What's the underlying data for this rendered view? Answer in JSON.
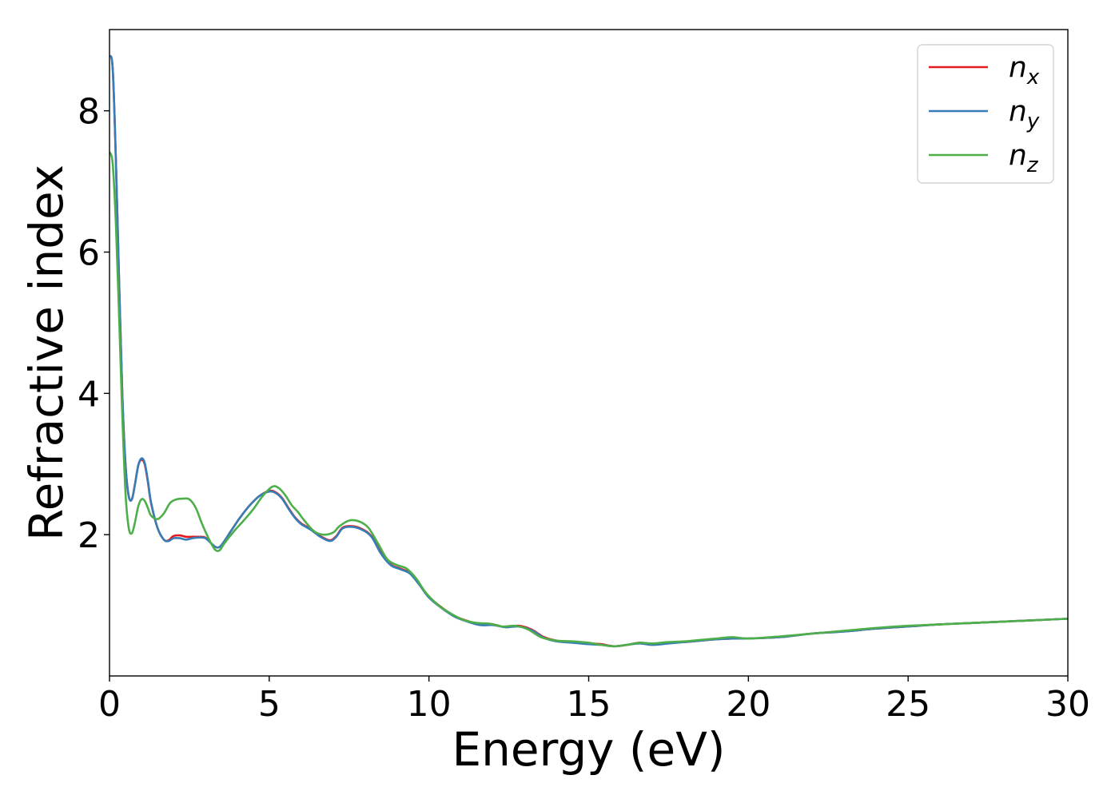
{
  "chart_data": {
    "type": "line",
    "title": "",
    "xlabel": "Energy (eV)",
    "ylabel": "Refractive index",
    "xlim": [
      0,
      30
    ],
    "ylim": [
      0.0,
      9.15
    ],
    "xticks": [
      0,
      5,
      10,
      15,
      20,
      25,
      30
    ],
    "yticks": [
      2,
      4,
      6,
      8
    ],
    "grid": false,
    "legend_position": "top-right",
    "series": [
      {
        "name": "x",
        "legend_base": "n",
        "color": "#e41a1c",
        "points": [
          [
            0,
            8.78
          ],
          [
            0.1,
            8.6
          ],
          [
            0.2,
            7.3
          ],
          [
            0.3,
            5.6
          ],
          [
            0.4,
            4.0
          ],
          [
            0.5,
            3.0
          ],
          [
            0.6,
            2.55
          ],
          [
            0.7,
            2.5
          ],
          [
            0.8,
            2.72
          ],
          [
            0.9,
            2.98
          ],
          [
            1.0,
            3.06
          ],
          [
            1.1,
            3.0
          ],
          [
            1.2,
            2.75
          ],
          [
            1.3,
            2.45
          ],
          [
            1.5,
            2.1
          ],
          [
            1.7,
            1.93
          ],
          [
            1.85,
            1.92
          ],
          [
            2.0,
            1.98
          ],
          [
            2.2,
            1.99
          ],
          [
            2.4,
            1.97
          ],
          [
            2.6,
            1.97
          ],
          [
            2.8,
            1.97
          ],
          [
            3.0,
            1.96
          ],
          [
            3.2,
            1.87
          ],
          [
            3.35,
            1.82
          ],
          [
            3.5,
            1.85
          ],
          [
            3.8,
            2.05
          ],
          [
            4.1,
            2.25
          ],
          [
            4.4,
            2.42
          ],
          [
            4.7,
            2.55
          ],
          [
            5.0,
            2.62
          ],
          [
            5.2,
            2.6
          ],
          [
            5.4,
            2.52
          ],
          [
            5.6,
            2.38
          ],
          [
            5.8,
            2.25
          ],
          [
            6.0,
            2.16
          ],
          [
            6.3,
            2.08
          ],
          [
            6.6,
            1.98
          ],
          [
            6.9,
            1.92
          ],
          [
            7.1,
            1.98
          ],
          [
            7.3,
            2.1
          ],
          [
            7.6,
            2.12
          ],
          [
            7.9,
            2.08
          ],
          [
            8.2,
            1.98
          ],
          [
            8.5,
            1.75
          ],
          [
            8.8,
            1.58
          ],
          [
            9.1,
            1.52
          ],
          [
            9.4,
            1.46
          ],
          [
            9.7,
            1.3
          ],
          [
            10.0,
            1.12
          ],
          [
            10.4,
            0.97
          ],
          [
            10.8,
            0.85
          ],
          [
            11.2,
            0.78
          ],
          [
            11.6,
            0.73
          ],
          [
            12.0,
            0.73
          ],
          [
            12.4,
            0.69
          ],
          [
            12.8,
            0.71
          ],
          [
            13.2,
            0.66
          ],
          [
            13.6,
            0.55
          ],
          [
            14.0,
            0.5
          ],
          [
            14.5,
            0.48
          ],
          [
            15.0,
            0.46
          ],
          [
            15.4,
            0.45
          ],
          [
            15.8,
            0.42
          ],
          [
            16.2,
            0.44
          ],
          [
            16.6,
            0.47
          ],
          [
            17.0,
            0.45
          ],
          [
            17.5,
            0.47
          ],
          [
            18.0,
            0.48
          ],
          [
            18.5,
            0.5
          ],
          [
            19.0,
            0.52
          ],
          [
            19.5,
            0.53
          ],
          [
            20.0,
            0.53
          ],
          [
            21.0,
            0.55
          ],
          [
            22.0,
            0.6
          ],
          [
            23.0,
            0.63
          ],
          [
            24.0,
            0.67
          ],
          [
            25.0,
            0.7
          ],
          [
            26.0,
            0.73
          ],
          [
            27.0,
            0.75
          ],
          [
            28.0,
            0.77
          ],
          [
            29.0,
            0.79
          ],
          [
            30.0,
            0.81
          ]
        ]
      },
      {
        "name": "y",
        "legend_base": "n",
        "color": "#377eb8",
        "points": [
          [
            0,
            8.78
          ],
          [
            0.1,
            8.6
          ],
          [
            0.2,
            7.3
          ],
          [
            0.3,
            5.6
          ],
          [
            0.4,
            4.0
          ],
          [
            0.5,
            3.0
          ],
          [
            0.6,
            2.55
          ],
          [
            0.7,
            2.5
          ],
          [
            0.8,
            2.72
          ],
          [
            0.9,
            2.98
          ],
          [
            1.0,
            3.08
          ],
          [
            1.1,
            3.02
          ],
          [
            1.2,
            2.77
          ],
          [
            1.3,
            2.46
          ],
          [
            1.5,
            2.1
          ],
          [
            1.7,
            1.93
          ],
          [
            1.85,
            1.91
          ],
          [
            2.0,
            1.95
          ],
          [
            2.2,
            1.95
          ],
          [
            2.4,
            1.93
          ],
          [
            2.6,
            1.95
          ],
          [
            2.8,
            1.96
          ],
          [
            3.0,
            1.95
          ],
          [
            3.2,
            1.87
          ],
          [
            3.35,
            1.82
          ],
          [
            3.5,
            1.85
          ],
          [
            3.8,
            2.05
          ],
          [
            4.1,
            2.25
          ],
          [
            4.4,
            2.42
          ],
          [
            4.7,
            2.55
          ],
          [
            5.0,
            2.61
          ],
          [
            5.2,
            2.59
          ],
          [
            5.4,
            2.51
          ],
          [
            5.6,
            2.37
          ],
          [
            5.8,
            2.24
          ],
          [
            6.0,
            2.15
          ],
          [
            6.3,
            2.07
          ],
          [
            6.6,
            1.97
          ],
          [
            6.9,
            1.91
          ],
          [
            7.1,
            1.97
          ],
          [
            7.3,
            2.09
          ],
          [
            7.6,
            2.11
          ],
          [
            7.9,
            2.07
          ],
          [
            8.2,
            1.97
          ],
          [
            8.5,
            1.73
          ],
          [
            8.8,
            1.57
          ],
          [
            9.1,
            1.51
          ],
          [
            9.4,
            1.45
          ],
          [
            9.7,
            1.29
          ],
          [
            10.0,
            1.11
          ],
          [
            10.4,
            0.96
          ],
          [
            10.8,
            0.84
          ],
          [
            11.2,
            0.77
          ],
          [
            11.6,
            0.72
          ],
          [
            12.0,
            0.72
          ],
          [
            12.4,
            0.69
          ],
          [
            12.8,
            0.7
          ],
          [
            13.2,
            0.65
          ],
          [
            13.6,
            0.54
          ],
          [
            14.0,
            0.49
          ],
          [
            14.5,
            0.47
          ],
          [
            15.0,
            0.45
          ],
          [
            15.4,
            0.44
          ],
          [
            15.8,
            0.42
          ],
          [
            16.2,
            0.44
          ],
          [
            16.6,
            0.46
          ],
          [
            17.0,
            0.44
          ],
          [
            17.5,
            0.46
          ],
          [
            18.0,
            0.48
          ],
          [
            18.5,
            0.5
          ],
          [
            19.0,
            0.52
          ],
          [
            19.5,
            0.53
          ],
          [
            20.0,
            0.53
          ],
          [
            21.0,
            0.55
          ],
          [
            22.0,
            0.6
          ],
          [
            23.0,
            0.63
          ],
          [
            24.0,
            0.67
          ],
          [
            25.0,
            0.7
          ],
          [
            26.0,
            0.73
          ],
          [
            27.0,
            0.75
          ],
          [
            28.0,
            0.77
          ],
          [
            29.0,
            0.79
          ],
          [
            30.0,
            0.81
          ]
        ]
      },
      {
        "name": "z",
        "legend_base": "n",
        "color": "#4daf4a",
        "points": [
          [
            0,
            7.42
          ],
          [
            0.1,
            7.25
          ],
          [
            0.2,
            6.4
          ],
          [
            0.3,
            5.1
          ],
          [
            0.4,
            3.7
          ],
          [
            0.5,
            2.6
          ],
          [
            0.6,
            2.1
          ],
          [
            0.7,
            2.02
          ],
          [
            0.8,
            2.18
          ],
          [
            0.9,
            2.4
          ],
          [
            1.0,
            2.5
          ],
          [
            1.1,
            2.48
          ],
          [
            1.2,
            2.38
          ],
          [
            1.3,
            2.27
          ],
          [
            1.5,
            2.22
          ],
          [
            1.7,
            2.3
          ],
          [
            1.9,
            2.45
          ],
          [
            2.1,
            2.5
          ],
          [
            2.3,
            2.51
          ],
          [
            2.5,
            2.5
          ],
          [
            2.7,
            2.38
          ],
          [
            2.9,
            2.15
          ],
          [
            3.1,
            1.95
          ],
          [
            3.3,
            1.79
          ],
          [
            3.45,
            1.78
          ],
          [
            3.6,
            1.88
          ],
          [
            3.9,
            2.05
          ],
          [
            4.2,
            2.2
          ],
          [
            4.5,
            2.36
          ],
          [
            4.8,
            2.55
          ],
          [
            5.1,
            2.68
          ],
          [
            5.3,
            2.66
          ],
          [
            5.5,
            2.56
          ],
          [
            5.7,
            2.42
          ],
          [
            5.9,
            2.32
          ],
          [
            6.1,
            2.2
          ],
          [
            6.4,
            2.05
          ],
          [
            6.7,
            2.0
          ],
          [
            7.0,
            2.03
          ],
          [
            7.2,
            2.12
          ],
          [
            7.5,
            2.2
          ],
          [
            7.8,
            2.19
          ],
          [
            8.1,
            2.1
          ],
          [
            8.4,
            1.88
          ],
          [
            8.7,
            1.65
          ],
          [
            9.0,
            1.57
          ],
          [
            9.3,
            1.52
          ],
          [
            9.6,
            1.38
          ],
          [
            9.9,
            1.18
          ],
          [
            10.3,
            1.0
          ],
          [
            10.7,
            0.88
          ],
          [
            11.1,
            0.79
          ],
          [
            11.5,
            0.75
          ],
          [
            11.9,
            0.74
          ],
          [
            12.3,
            0.7
          ],
          [
            12.7,
            0.71
          ],
          [
            13.1,
            0.66
          ],
          [
            13.5,
            0.55
          ],
          [
            14.0,
            0.5
          ],
          [
            14.5,
            0.49
          ],
          [
            15.0,
            0.47
          ],
          [
            15.4,
            0.44
          ],
          [
            15.8,
            0.42
          ],
          [
            16.2,
            0.44
          ],
          [
            16.6,
            0.47
          ],
          [
            17.0,
            0.46
          ],
          [
            17.5,
            0.48
          ],
          [
            18.0,
            0.49
          ],
          [
            18.5,
            0.51
          ],
          [
            19.0,
            0.53
          ],
          [
            19.5,
            0.55
          ],
          [
            20.0,
            0.53
          ],
          [
            21.0,
            0.56
          ],
          [
            22.0,
            0.6
          ],
          [
            23.0,
            0.64
          ],
          [
            24.0,
            0.68
          ],
          [
            25.0,
            0.71
          ],
          [
            26.0,
            0.73
          ],
          [
            27.0,
            0.75
          ],
          [
            28.0,
            0.77
          ],
          [
            29.0,
            0.79
          ],
          [
            30.0,
            0.81
          ]
        ]
      }
    ]
  }
}
